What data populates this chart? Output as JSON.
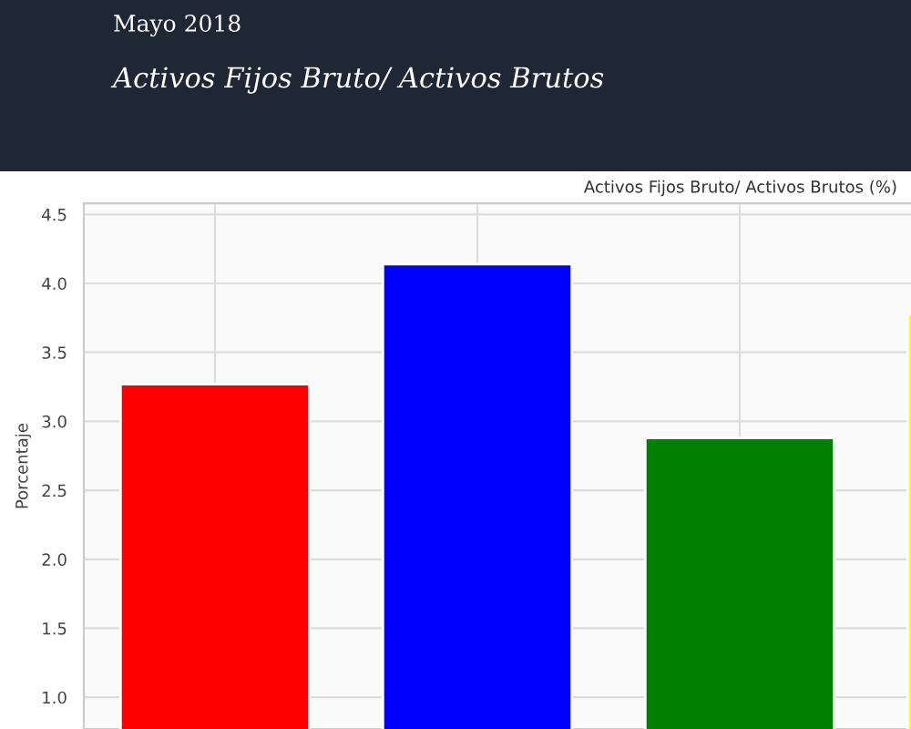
{
  "chart_data": {
    "type": "bar",
    "title": "Activos Fijos Bruto/ Activos Brutos (%)",
    "ylabel": "Porcentaje",
    "annotations": [
      "Mayo 2018",
      "Activos Fijos Bruto/ Activos Brutos"
    ],
    "categories": [
      null,
      null,
      null,
      null
    ],
    "values": [
      3.27,
      4.14,
      2.88,
      3.78
    ],
    "colors": [
      "#ff0000",
      "#0000ff",
      "#008000",
      "#ffff00"
    ],
    "ylim": [
      0.77,
      4.58
    ],
    "yticks": [
      {
        "value": 1,
        "label": "1.0"
      },
      {
        "value": 1.5,
        "label": "1.5"
      },
      {
        "value": 2,
        "label": "2.0"
      },
      {
        "value": 2.5,
        "label": "2.5"
      },
      {
        "value": 3,
        "label": "3.0"
      },
      {
        "value": 3.5,
        "label": "3.5"
      },
      {
        "value": 4,
        "label": "4.0"
      },
      {
        "value": 4.5,
        "label": "4.5"
      }
    ],
    "grid": true
  }
}
